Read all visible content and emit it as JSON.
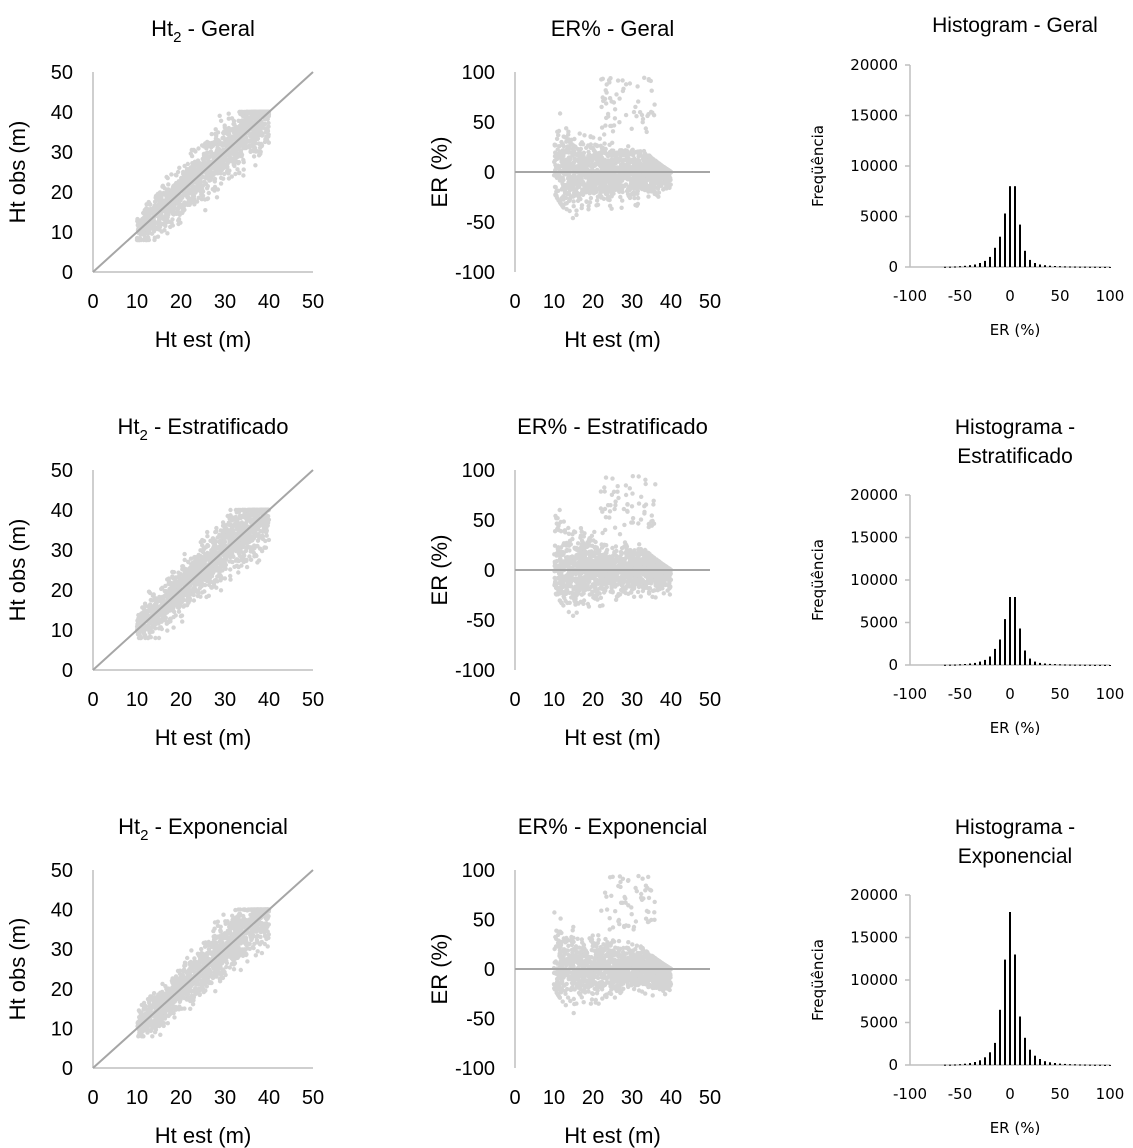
{
  "chart_data": [
    {
      "type": "scatter",
      "kind": "obs-vs-est",
      "title_main": "Ht",
      "title_sub": "2",
      "title_rest": " - Geral",
      "xlabel": "Ht est (m)",
      "ylabel": "Ht obs (m)",
      "xlim": [
        0,
        50
      ],
      "ylim": [
        0,
        50
      ],
      "xticks": [
        "0",
        "10",
        "20",
        "30",
        "40",
        "50"
      ],
      "yticks": [
        "0",
        "10",
        "20",
        "30",
        "40",
        "50"
      ],
      "reference_line": "1:1",
      "n_points": 1400,
      "seed": 11
    },
    {
      "type": "scatter",
      "kind": "residuals",
      "title_main": "ER% - Geral",
      "title_sub": "",
      "title_rest": "",
      "xlabel": "Ht est (m)",
      "ylabel": "ER (%)",
      "xlim": [
        0,
        50
      ],
      "ylim": [
        -100,
        100
      ],
      "xticks": [
        "0",
        "10",
        "20",
        "30",
        "40",
        "50"
      ],
      "yticks": [
        "-100",
        "-50",
        "0",
        "50",
        "100"
      ],
      "reference_line": "y=0",
      "n_points": 1400,
      "seed": 12
    },
    {
      "type": "bar",
      "kind": "histogram",
      "title_lines": [
        "Histogram - Geral"
      ],
      "xlabel": "ER (%)",
      "ylabel": "Freqüência",
      "xlim": [
        -100,
        100
      ],
      "ylim": [
        0,
        20000
      ],
      "xticks": [
        "-100",
        "-50",
        "0",
        "50",
        "100"
      ],
      "yticks": [
        "0",
        "5000",
        "10000",
        "15000",
        "20000"
      ],
      "bin_width": 5,
      "x": [
        -65,
        -60,
        -55,
        -50,
        -45,
        -40,
        -35,
        -30,
        -25,
        -20,
        -15,
        -10,
        -5,
        0,
        5,
        10,
        15,
        20,
        25,
        30,
        35,
        40,
        45,
        50,
        55,
        60,
        65,
        70,
        75,
        80,
        85,
        90,
        95,
        100
      ],
      "values": [
        20,
        30,
        50,
        80,
        120,
        180,
        250,
        400,
        600,
        1000,
        1900,
        3000,
        5300,
        8000,
        8000,
        4200,
        1600,
        700,
        400,
        250,
        180,
        130,
        100,
        80,
        60,
        50,
        40,
        30,
        25,
        20,
        15,
        10,
        8,
        5
      ]
    },
    {
      "type": "scatter",
      "kind": "obs-vs-est",
      "title_main": "Ht",
      "title_sub": "2",
      "title_rest": " - Estratificado",
      "xlabel": "Ht est (m)",
      "ylabel": "Ht obs (m)",
      "xlim": [
        0,
        50
      ],
      "ylim": [
        0,
        50
      ],
      "xticks": [
        "0",
        "10",
        "20",
        "30",
        "40",
        "50"
      ],
      "yticks": [
        "0",
        "10",
        "20",
        "30",
        "40",
        "50"
      ],
      "reference_line": "1:1",
      "n_points": 1400,
      "seed": 21
    },
    {
      "type": "scatter",
      "kind": "residuals",
      "title_main": "ER% - Estratificado",
      "title_sub": "",
      "title_rest": "",
      "xlabel": "Ht est (m)",
      "ylabel": "ER (%)",
      "xlim": [
        0,
        50
      ],
      "ylim": [
        -100,
        100
      ],
      "xticks": [
        "0",
        "10",
        "20",
        "30",
        "40",
        "50"
      ],
      "yticks": [
        "-100",
        "-50",
        "0",
        "50",
        "100"
      ],
      "reference_line": "y=0",
      "n_points": 1400,
      "seed": 22
    },
    {
      "type": "bar",
      "kind": "histogram",
      "title_lines": [
        "Histograma -",
        "Estratificado"
      ],
      "xlabel": "ER (%)",
      "ylabel": "Freqüência",
      "xlim": [
        -100,
        100
      ],
      "ylim": [
        0,
        20000
      ],
      "xticks": [
        "-100",
        "-50",
        "0",
        "50",
        "100"
      ],
      "yticks": [
        "0",
        "5000",
        "10000",
        "15000",
        "20000"
      ],
      "bin_width": 5,
      "x": [
        -65,
        -60,
        -55,
        -50,
        -45,
        -40,
        -35,
        -30,
        -25,
        -20,
        -15,
        -10,
        -5,
        0,
        5,
        10,
        15,
        20,
        25,
        30,
        35,
        40,
        45,
        50,
        55,
        60,
        65,
        70,
        75,
        80,
        85,
        90,
        95,
        100
      ],
      "values": [
        20,
        30,
        50,
        80,
        120,
        180,
        250,
        400,
        600,
        1000,
        1900,
        3000,
        5400,
        8000,
        8000,
        4300,
        1700,
        750,
        400,
        250,
        180,
        130,
        100,
        80,
        60,
        50,
        40,
        30,
        25,
        20,
        15,
        10,
        8,
        5
      ]
    },
    {
      "type": "scatter",
      "kind": "obs-vs-est",
      "title_main": "Ht",
      "title_sub": "2",
      "title_rest": " - Exponencial",
      "xlabel": "Ht est (m)",
      "ylabel": "Ht obs (m)",
      "xlim": [
        0,
        50
      ],
      "ylim": [
        0,
        50
      ],
      "xticks": [
        "0",
        "10",
        "20",
        "30",
        "40",
        "50"
      ],
      "yticks": [
        "0",
        "10",
        "20",
        "30",
        "40",
        "50"
      ],
      "reference_line": "1:1",
      "n_points": 1400,
      "seed": 31
    },
    {
      "type": "scatter",
      "kind": "residuals",
      "title_main": "ER% - Exponencial",
      "title_sub": "",
      "title_rest": "",
      "xlabel": "Ht est (m)",
      "ylabel": "ER (%)",
      "xlim": [
        0,
        50
      ],
      "ylim": [
        -100,
        100
      ],
      "xticks": [
        "0",
        "10",
        "20",
        "30",
        "40",
        "50"
      ],
      "yticks": [
        "-100",
        "-50",
        "0",
        "50",
        "100"
      ],
      "reference_line": "y=0",
      "n_points": 1400,
      "seed": 32
    },
    {
      "type": "bar",
      "kind": "histogram",
      "title_lines": [
        "Histograma -",
        "Exponencial"
      ],
      "xlabel": "ER (%)",
      "ylabel": "Freqüência",
      "xlim": [
        -100,
        100
      ],
      "ylim": [
        0,
        20000
      ],
      "xticks": [
        "-100",
        "-50",
        "0",
        "50",
        "100"
      ],
      "yticks": [
        "0",
        "5000",
        "10000",
        "15000",
        "20000"
      ],
      "bin_width": 5,
      "x": [
        -65,
        -60,
        -55,
        -50,
        -45,
        -40,
        -35,
        -30,
        -25,
        -20,
        -15,
        -10,
        -5,
        0,
        5,
        10,
        15,
        20,
        25,
        30,
        35,
        40,
        45,
        50,
        55,
        60,
        65,
        70,
        75,
        80,
        85,
        90,
        95,
        100
      ],
      "values": [
        30,
        40,
        60,
        100,
        150,
        220,
        350,
        550,
        900,
        1500,
        2600,
        6500,
        12400,
        18000,
        13000,
        5700,
        3200,
        1800,
        1100,
        700,
        450,
        320,
        230,
        170,
        130,
        100,
        80,
        60,
        45,
        35,
        25,
        18,
        12,
        8
      ]
    }
  ],
  "colors": {
    "points": "#d4d4d4",
    "axis": "#bfbfbf",
    "reference_line": "#a6a6a6",
    "bars": "#000000"
  }
}
